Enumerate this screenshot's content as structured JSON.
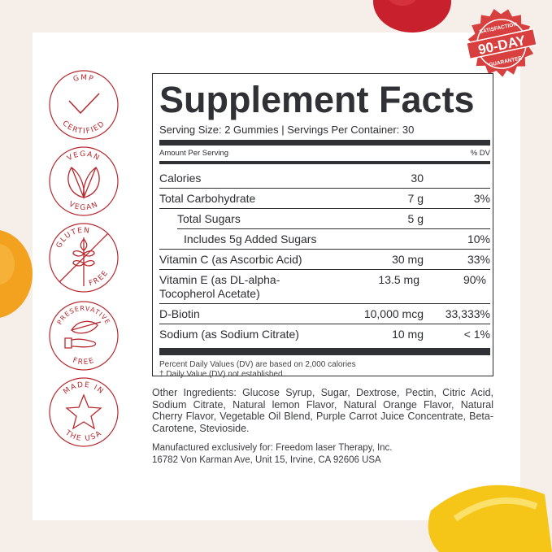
{
  "badges": [
    {
      "top": "GMP",
      "bottom": "CERTIFIED",
      "icon": "checkmark-icon"
    },
    {
      "top": "VEGAN",
      "bottom": "VEGAN",
      "icon": "leaf-icon"
    },
    {
      "top": "GLUTEN",
      "bottom": "FREE",
      "icon": "wheat-crossed-icon"
    },
    {
      "top": "PRESERVATIVE",
      "bottom": "FREE",
      "icon": "hand-leaf-icon"
    },
    {
      "top": "MADE IN",
      "bottom": "THE USA",
      "icon": "star-icon"
    }
  ],
  "seal": {
    "top": "SATISFACTION",
    "main": "90-DAY",
    "bottom": "GUARANTEE",
    "color": "#d8403f"
  },
  "accent": "#b7282e",
  "facts": {
    "title": "Supplement Facts",
    "serving": "Serving Size: 2 Gummies | Servings Per Container: 30",
    "amount_header": "Amount Per Serving",
    "dv_header": "% DV",
    "rows": [
      {
        "name": "Calories",
        "amount": "30",
        "dv": ""
      },
      {
        "name": "Total Carbohydrate",
        "amount": "7 g",
        "dv": "3%"
      },
      {
        "name": "Total Sugars",
        "amount": "5 g",
        "dv": ""
      },
      {
        "name": "Includes  5g Added Sugars",
        "amount": "",
        "dv": "10%"
      },
      {
        "name": "Vitamin C (as Ascorbic Acid)",
        "amount": "30 mg",
        "dv": "33%"
      },
      {
        "name": "Vitamin E (as DL-alpha-Tocopherol Acetate)",
        "amount": "13.5 mg",
        "dv": "90%"
      },
      {
        "name": "D-Biotin",
        "amount": "10,000 mcg",
        "dv": "33,333%"
      },
      {
        "name": "Sodium (as Sodium Citrate)",
        "amount": "10 mg",
        "dv": "< 1%"
      }
    ],
    "footnote1": "Percent Daily Values (DV) are based on 2,000 calories",
    "footnote2": "†  Daily Value (DV) not established"
  },
  "ingredients": "Other Ingredients: Glucose Syrup, Sugar, Dextrose, Pectin, Citric Acid, Sodium Citrate, Natural lemon Flavor, Natural Orange Flavor, Natural Cherry Flavor, Vegetable Oil Blend, Purple Carrot Juice Concentrate, Beta-Carotene, Stevioside.",
  "manufacturer": {
    "line1": "Manufactured exclusively for: Freedom laser Therapy, Inc.",
    "line2": "16782 Von Karman Ave, Unit 15, Irvine, CA 92606 USA"
  }
}
